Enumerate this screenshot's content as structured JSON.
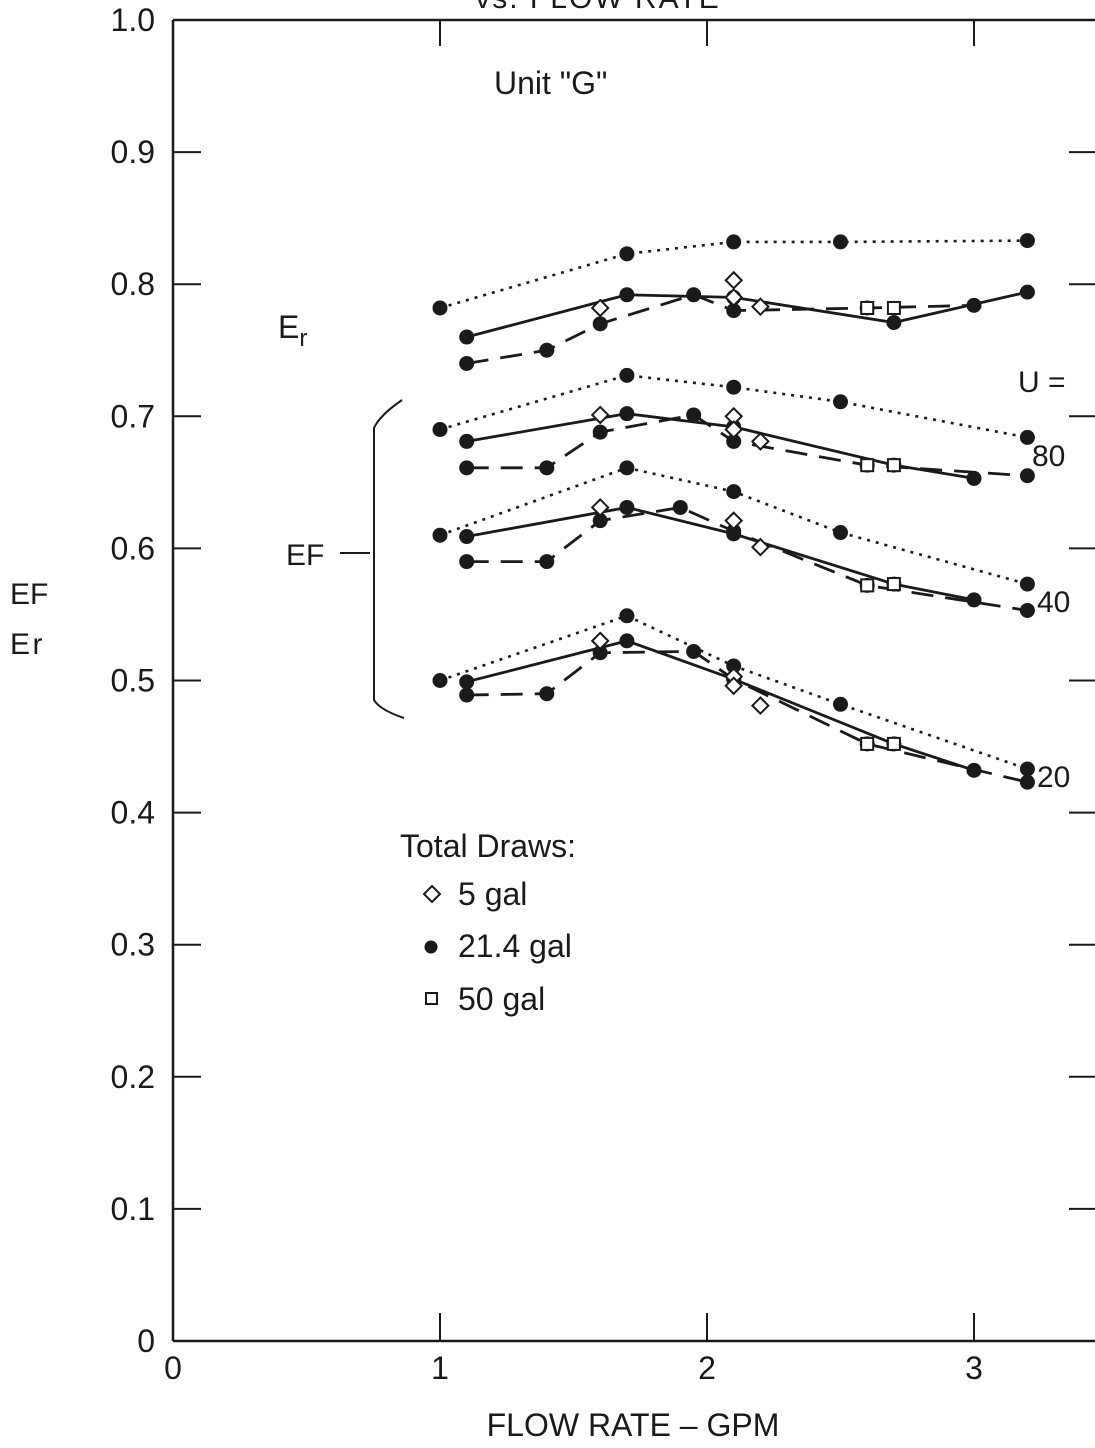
{
  "page_title_fragment": "vs. FLOW RATE",
  "chart_data": {
    "type": "line",
    "subtitle": "Unit \"G\"",
    "xlabel": "FLOW RATE – GPM",
    "ylabel_lines": [
      "EF",
      "E r"
    ],
    "xlim": [
      0,
      3.4
    ],
    "ylim": [
      0,
      1.0
    ],
    "x_ticks": [
      "0",
      "1",
      "2",
      "3"
    ],
    "y_ticks": [
      "0",
      "0.1",
      "0.2",
      "0.3",
      "0.4",
      "0.5",
      "0.6",
      "0.7",
      "0.8",
      "0.9",
      "1.0"
    ],
    "grid": false,
    "group_labels": {
      "er": "E",
      "er_sub": "r",
      "ef": "EF"
    },
    "u_label": "U =",
    "u_values": [
      "80",
      "40",
      "20"
    ],
    "legend": {
      "title": "Total Draws:",
      "entries": [
        {
          "marker": "diamond-open",
          "label": "5 gal"
        },
        {
          "marker": "circle-filled",
          "label": "21.4 gal"
        },
        {
          "marker": "square-open",
          "label": "50 gal"
        }
      ]
    },
    "series": [
      {
        "group": "Er",
        "style": "dotted",
        "marker": "circle-filled",
        "x": [
          1.0,
          1.7,
          2.1,
          2.5,
          3.2
        ],
        "y": [
          0.782,
          0.823,
          0.832,
          0.832,
          0.833
        ]
      },
      {
        "group": "Er",
        "style": "solid",
        "marker": "circle-filled",
        "x": [
          1.1,
          1.7,
          2.1,
          2.7,
          3.2
        ],
        "y": [
          0.76,
          0.792,
          0.79,
          0.771,
          0.794
        ]
      },
      {
        "group": "Er",
        "style": "dashed",
        "marker": "circle-filled",
        "x": [
          1.1,
          1.4,
          1.6,
          1.95,
          2.1,
          2.6,
          3.0
        ],
        "y": [
          0.74,
          0.75,
          0.77,
          0.792,
          0.78,
          0.782,
          0.784
        ]
      },
      {
        "group": "Er",
        "style": "none",
        "marker": "diamond-open",
        "x": [
          1.6,
          2.1,
          2.1,
          2.2
        ],
        "y": [
          0.782,
          0.803,
          0.79,
          0.783
        ]
      },
      {
        "group": "Er",
        "style": "none",
        "marker": "square-open",
        "x": [
          2.6,
          2.7
        ],
        "y": [
          0.782,
          0.782
        ]
      },
      {
        "group": "EF U=80",
        "style": "dotted",
        "marker": "circle-filled",
        "x": [
          1.0,
          1.7,
          2.1,
          2.5,
          3.2
        ],
        "y": [
          0.69,
          0.731,
          0.722,
          0.711,
          0.684
        ]
      },
      {
        "group": "EF U=80",
        "style": "solid",
        "marker": "circle-filled",
        "x": [
          1.1,
          1.7,
          2.1,
          2.7,
          3.0
        ],
        "y": [
          0.681,
          0.702,
          0.692,
          0.663,
          0.653
        ]
      },
      {
        "group": "EF U=80",
        "style": "dashed",
        "marker": "circle-filled",
        "x": [
          1.1,
          1.4,
          1.6,
          1.95,
          2.1,
          2.6,
          3.2
        ],
        "y": [
          0.661,
          0.661,
          0.688,
          0.701,
          0.681,
          0.663,
          0.655
        ]
      },
      {
        "group": "EF U=80",
        "style": "none",
        "marker": "diamond-open",
        "x": [
          1.6,
          2.1,
          2.1,
          2.2
        ],
        "y": [
          0.701,
          0.7,
          0.69,
          0.681
        ]
      },
      {
        "group": "EF U=80",
        "style": "none",
        "marker": "square-open",
        "x": [
          2.6,
          2.7
        ],
        "y": [
          0.663,
          0.663
        ]
      },
      {
        "group": "EF U=40",
        "style": "dotted",
        "marker": "circle-filled",
        "x": [
          1.0,
          1.7,
          2.1,
          2.5,
          3.2
        ],
        "y": [
          0.61,
          0.661,
          0.643,
          0.612,
          0.573
        ]
      },
      {
        "group": "EF U=40",
        "style": "solid",
        "marker": "circle-filled",
        "x": [
          1.1,
          1.7,
          2.1,
          2.7,
          3.0
        ],
        "y": [
          0.609,
          0.631,
          0.611,
          0.573,
          0.561
        ]
      },
      {
        "group": "EF U=40",
        "style": "dashed",
        "marker": "circle-filled",
        "x": [
          1.1,
          1.4,
          1.6,
          1.9,
          2.1,
          2.6,
          3.2
        ],
        "y": [
          0.59,
          0.59,
          0.621,
          0.631,
          0.613,
          0.572,
          0.553
        ]
      },
      {
        "group": "EF U=40",
        "style": "none",
        "marker": "diamond-open",
        "x": [
          1.6,
          2.1,
          2.2
        ],
        "y": [
          0.631,
          0.621,
          0.601
        ]
      },
      {
        "group": "EF U=40",
        "style": "none",
        "marker": "square-open",
        "x": [
          2.6,
          2.7
        ],
        "y": [
          0.572,
          0.573
        ]
      },
      {
        "group": "EF U=20",
        "style": "dotted",
        "marker": "circle-filled",
        "x": [
          1.0,
          1.7,
          2.1,
          2.5,
          3.2
        ],
        "y": [
          0.5,
          0.549,
          0.511,
          0.482,
          0.433
        ]
      },
      {
        "group": "EF U=20",
        "style": "solid",
        "marker": "circle-filled",
        "x": [
          1.1,
          1.7,
          2.1,
          2.7,
          3.0
        ],
        "y": [
          0.499,
          0.53,
          0.501,
          0.452,
          0.432
        ]
      },
      {
        "group": "EF U=20",
        "style": "dashed",
        "marker": "circle-filled",
        "x": [
          1.1,
          1.4,
          1.6,
          1.95,
          2.1,
          2.6,
          3.2
        ],
        "y": [
          0.489,
          0.49,
          0.521,
          0.522,
          0.501,
          0.452,
          0.423
        ]
      },
      {
        "group": "EF U=20",
        "style": "none",
        "marker": "diamond-open",
        "x": [
          1.6,
          2.1,
          2.1,
          2.2
        ],
        "y": [
          0.53,
          0.503,
          0.496,
          0.481
        ]
      },
      {
        "group": "EF U=20",
        "style": "none",
        "marker": "square-open",
        "x": [
          2.6,
          2.7
        ],
        "y": [
          0.452,
          0.452
        ]
      }
    ]
  }
}
